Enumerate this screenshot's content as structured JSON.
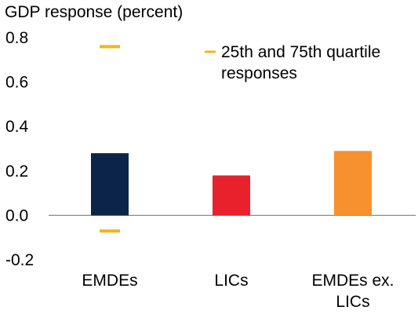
{
  "chart_data": {
    "type": "bar",
    "ylabel": "GDP response (percent)",
    "categories": [
      "EMDEs",
      "LICs",
      "EMDEs ex. LICs"
    ],
    "category_lines": [
      [
        "EMDEs"
      ],
      [
        "LICs"
      ],
      [
        "EMDEs ex.",
        "LICs"
      ]
    ],
    "values": [
      0.28,
      0.18,
      0.29
    ],
    "bar_colors": [
      "#0b2447",
      "#e8212d",
      "#f7902f"
    ],
    "quartiles": {
      "name": "25th and 75th quartile responses",
      "name_lines": [
        "25th and 75th quartile",
        "responses"
      ],
      "color": "#f5b41a",
      "points": [
        {
          "category": "EMDEs",
          "low": -0.07,
          "high": 0.76
        }
      ]
    },
    "ylim": [
      -0.2,
      0.8
    ],
    "yticks": [
      0.8,
      0.6,
      0.4,
      0.2,
      0.0,
      -0.2
    ],
    "ytick_labels": [
      "0.8",
      "0.6",
      "0.4",
      "0.2",
      "0.0",
      "-0.2"
    ],
    "legend_position": "top-right",
    "grid": false,
    "zero_line": true
  }
}
